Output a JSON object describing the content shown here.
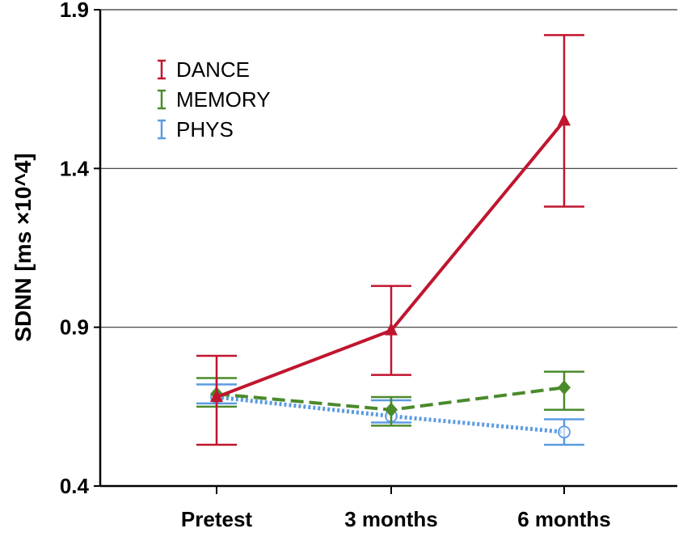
{
  "chart_data": {
    "type": "line",
    "ylabel": "SDNN [ms ×10^4]",
    "xlabel": "",
    "categories": [
      "Pretest",
      "3 months",
      "6 months"
    ],
    "ylim": [
      0.4,
      1.9
    ],
    "yticks": [
      0.4,
      0.9,
      1.4,
      1.9
    ],
    "grid": true,
    "legend_position": "top-left",
    "series": [
      {
        "name": "DANCE",
        "color": "#c0152f",
        "line_style": "solid",
        "marker": "triangle",
        "values": [
          0.68,
          0.89,
          1.55
        ],
        "err_low": [
          0.53,
          0.75,
          1.28
        ],
        "err_high": [
          0.81,
          1.03,
          1.82
        ]
      },
      {
        "name": "MEMORY",
        "color": "#4b8a2b",
        "line_style": "dashed",
        "marker": "diamond",
        "values": [
          0.69,
          0.64,
          0.71
        ],
        "err_low": [
          0.65,
          0.59,
          0.64
        ],
        "err_high": [
          0.74,
          0.68,
          0.76
        ]
      },
      {
        "name": "PHYS",
        "color": "#5b9be0",
        "line_style": "dotted",
        "marker": "circle",
        "values": [
          0.68,
          0.62,
          0.57
        ],
        "err_low": [
          0.66,
          0.6,
          0.53
        ],
        "err_high": [
          0.72,
          0.67,
          0.61
        ]
      }
    ]
  }
}
